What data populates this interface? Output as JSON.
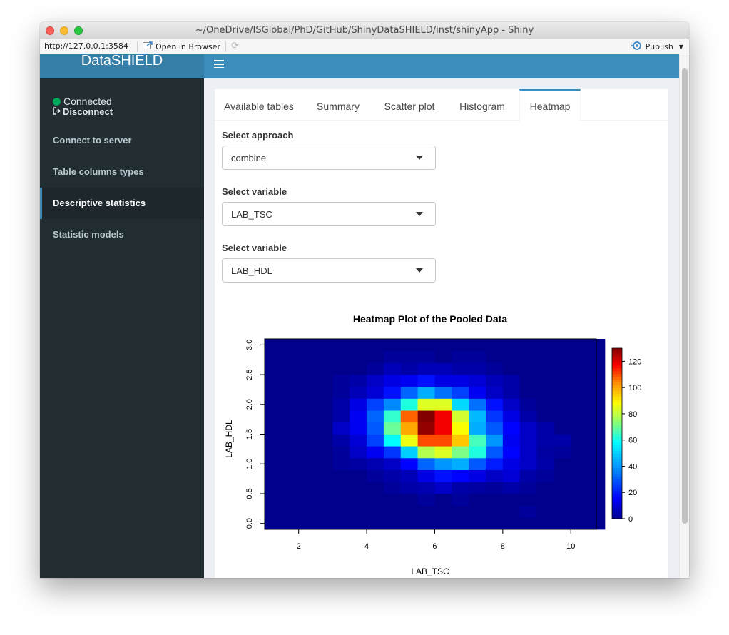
{
  "window": {
    "title": "~/OneDrive/ISGlobal/PhD/GitHub/ShinyDataSHIELD/inst/shinyApp - Shiny"
  },
  "toolbar": {
    "url": "http://127.0.0.1:3584",
    "open_in_browser": "Open in Browser",
    "publish": "Publish",
    "icons": [
      "open-browser-icon",
      "refresh-icon",
      "publish-icon",
      "dropdown-arrow-icon"
    ]
  },
  "header": {
    "logo": "DataSHIELD",
    "menu_icon": "hamburger-icon"
  },
  "sidebar": {
    "status": "Connected",
    "disconnect": "Disconnect",
    "items": [
      {
        "label": "Connect to server"
      },
      {
        "label": "Table columns types"
      },
      {
        "label": "Descriptive statistics",
        "active": true
      },
      {
        "label": "Statistic models"
      }
    ]
  },
  "tabs": [
    {
      "label": "Available tables"
    },
    {
      "label": "Summary"
    },
    {
      "label": "Scatter plot"
    },
    {
      "label": "Histogram"
    },
    {
      "label": "Heatmap",
      "active": true
    }
  ],
  "form": {
    "approach_label": "Select approach",
    "approach_value": "combine",
    "var1_label": "Select variable",
    "var1_value": "LAB_TSC",
    "var2_label": "Select variable",
    "var2_value": "LAB_HDL"
  },
  "chart_data": {
    "type": "heatmap",
    "title": "Heatmap Plot of the Pooled Data",
    "xlabel": "LAB_TSC",
    "ylabel": "LAB_HDL",
    "xlim": [
      1,
      10.75
    ],
    "ylim": [
      -0.1,
      3.1
    ],
    "xticks": [
      2,
      4,
      6,
      8,
      10
    ],
    "yticks": [
      "0.0",
      "0.5",
      "1.0",
      "1.5",
      "2.0",
      "2.5",
      "3.0"
    ],
    "colorbar_ticks": [
      0,
      20,
      40,
      60,
      80,
      100,
      120
    ],
    "colorbar_max": 130,
    "grid": {
      "x_start": 1.0,
      "x_step": 0.5,
      "nx": 20,
      "y_start": -0.1,
      "y_step": 0.2,
      "ny": 16
    },
    "values": [
      [
        0,
        0,
        0,
        0,
        0,
        0,
        0,
        0,
        0,
        0,
        0,
        0,
        0,
        0,
        0,
        0,
        0,
        0,
        0,
        0
      ],
      [
        0,
        0,
        0,
        0,
        0,
        0,
        0,
        0,
        0,
        0,
        0,
        0,
        0,
        0,
        0,
        2,
        0,
        0,
        0,
        0
      ],
      [
        0,
        0,
        0,
        0,
        0,
        0,
        0,
        0,
        0,
        2,
        0,
        2,
        0,
        0,
        0,
        0,
        0,
        0,
        0,
        0
      ],
      [
        0,
        0,
        0,
        0,
        0,
        0,
        0,
        2,
        4,
        5,
        8,
        4,
        3,
        2,
        4,
        2,
        0,
        0,
        0,
        0
      ],
      [
        0,
        0,
        0,
        0,
        0,
        0,
        2,
        4,
        6,
        12,
        18,
        16,
        12,
        8,
        10,
        4,
        2,
        0,
        0,
        0
      ],
      [
        0,
        0,
        0,
        0,
        2,
        3,
        5,
        8,
        16,
        32,
        40,
        44,
        30,
        20,
        12,
        8,
        4,
        0,
        0,
        0
      ],
      [
        0,
        0,
        0,
        0,
        2,
        8,
        14,
        24,
        50,
        78,
        84,
        72,
        62,
        30,
        16,
        8,
        3,
        2,
        0,
        0
      ],
      [
        0,
        0,
        0,
        0,
        4,
        10,
        26,
        58,
        86,
        110,
        110,
        96,
        66,
        40,
        14,
        8,
        4,
        4,
        0,
        0
      ],
      [
        0,
        0,
        0,
        0,
        8,
        14,
        30,
        70,
        100,
        128,
        118,
        88,
        44,
        30,
        16,
        8,
        4,
        0,
        0,
        0
      ],
      [
        0,
        0,
        0,
        0,
        4,
        14,
        32,
        64,
        108,
        130,
        118,
        82,
        46,
        24,
        12,
        4,
        0,
        0,
        0,
        0
      ],
      [
        0,
        0,
        0,
        0,
        4,
        12,
        26,
        38,
        62,
        84,
        84,
        52,
        34,
        18,
        8,
        2,
        0,
        0,
        0,
        0
      ],
      [
        0,
        0,
        0,
        0,
        2,
        6,
        10,
        18,
        32,
        44,
        34,
        26,
        14,
        8,
        4,
        0,
        0,
        0,
        0,
        0
      ],
      [
        0,
        0,
        0,
        0,
        2,
        4,
        8,
        12,
        14,
        18,
        12,
        12,
        10,
        6,
        4,
        0,
        0,
        0,
        0,
        0
      ],
      [
        0,
        0,
        0,
        0,
        0,
        0,
        2,
        6,
        4,
        6,
        6,
        4,
        4,
        2,
        0,
        0,
        0,
        0,
        0,
        0
      ],
      [
        0,
        0,
        0,
        0,
        0,
        0,
        0,
        2,
        2,
        2,
        0,
        2,
        2,
        0,
        0,
        0,
        0,
        0,
        0,
        0
      ],
      [
        0,
        0,
        0,
        0,
        0,
        0,
        0,
        0,
        0,
        0,
        0,
        0,
        0,
        0,
        0,
        0,
        0,
        0,
        0,
        0
      ]
    ]
  }
}
